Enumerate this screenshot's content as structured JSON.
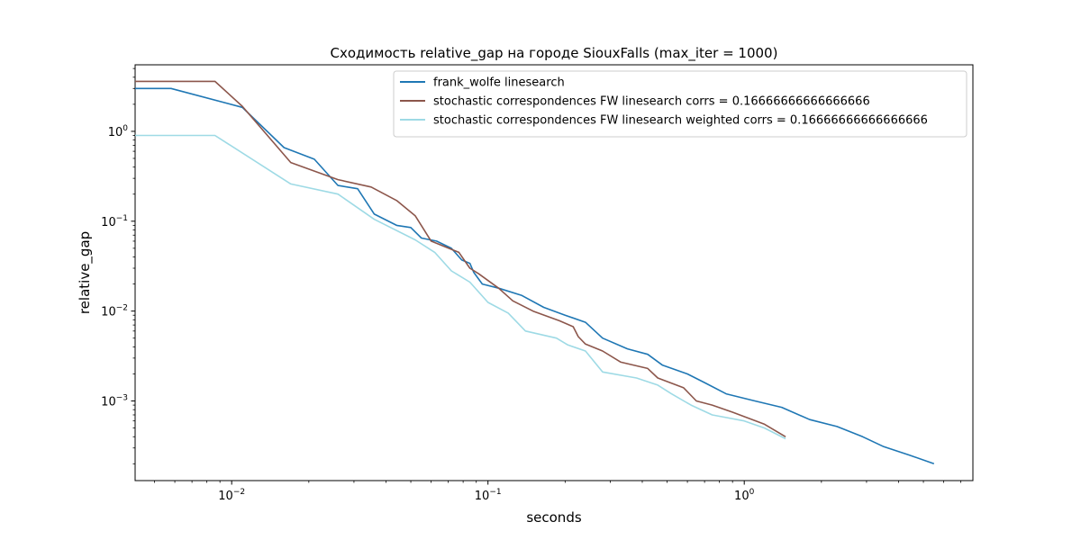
{
  "chart_data": {
    "type": "line",
    "title": "Сходимость relative_gap на городе SiouxFalls  (max_iter = 1000)",
    "xlabel": "seconds",
    "ylabel": "relative_gap",
    "xscale": "log",
    "yscale": "log",
    "xlim": [
      0.0042,
      7.8
    ],
    "ylim": [
      0.00013,
      5.5
    ],
    "grid": false,
    "legend_position": "top-right",
    "x_ticks": [
      {
        "value": 0.01,
        "base": "10",
        "exp": "−2"
      },
      {
        "value": 0.1,
        "base": "10",
        "exp": "−1"
      },
      {
        "value": 1,
        "base": "10",
        "exp": "0"
      }
    ],
    "y_ticks": [
      {
        "value": 0.001,
        "base": "10",
        "exp": "−3"
      },
      {
        "value": 0.01,
        "base": "10",
        "exp": "−2"
      },
      {
        "value": 0.1,
        "base": "10",
        "exp": "−1"
      },
      {
        "value": 1,
        "base": "10",
        "exp": "0"
      }
    ],
    "series": [
      {
        "name": "frank_wolfe linesearch",
        "color": "#1f77b4",
        "points": [
          [
            0.0042,
            3.0
          ],
          [
            0.0058,
            3.0
          ],
          [
            0.011,
            1.85
          ],
          [
            0.016,
            0.66
          ],
          [
            0.021,
            0.49
          ],
          [
            0.026,
            0.25
          ],
          [
            0.031,
            0.23
          ],
          [
            0.036,
            0.12
          ],
          [
            0.044,
            0.09
          ],
          [
            0.05,
            0.085
          ],
          [
            0.055,
            0.065
          ],
          [
            0.063,
            0.06
          ],
          [
            0.072,
            0.05
          ],
          [
            0.079,
            0.037
          ],
          [
            0.085,
            0.034
          ],
          [
            0.088,
            0.027
          ],
          [
            0.095,
            0.02
          ],
          [
            0.11,
            0.018
          ],
          [
            0.135,
            0.015
          ],
          [
            0.165,
            0.011
          ],
          [
            0.2,
            0.009
          ],
          [
            0.24,
            0.0075
          ],
          [
            0.28,
            0.005
          ],
          [
            0.35,
            0.0038
          ],
          [
            0.42,
            0.0033
          ],
          [
            0.48,
            0.0025
          ],
          [
            0.6,
            0.002
          ],
          [
            0.7,
            0.0016
          ],
          [
            0.85,
            0.0012
          ],
          [
            1.1,
            0.001
          ],
          [
            1.4,
            0.00085
          ],
          [
            1.8,
            0.00062
          ],
          [
            2.3,
            0.00052
          ],
          [
            2.9,
            0.0004
          ],
          [
            3.5,
            0.00031
          ],
          [
            4.4,
            0.00025
          ],
          [
            5.5,
            0.0002
          ]
        ]
      },
      {
        "name": "stochastic correspondences FW linesearch corrs = 0.16666666666666666",
        "color": "#8c564b",
        "points": [
          [
            0.0042,
            3.6
          ],
          [
            0.0086,
            3.6
          ],
          [
            0.011,
            1.9
          ],
          [
            0.017,
            0.45
          ],
          [
            0.026,
            0.29
          ],
          [
            0.035,
            0.24
          ],
          [
            0.044,
            0.17
          ],
          [
            0.052,
            0.115
          ],
          [
            0.06,
            0.06
          ],
          [
            0.077,
            0.045
          ],
          [
            0.085,
            0.03
          ],
          [
            0.092,
            0.026
          ],
          [
            0.11,
            0.018
          ],
          [
            0.125,
            0.013
          ],
          [
            0.15,
            0.01
          ],
          [
            0.19,
            0.0078
          ],
          [
            0.215,
            0.0067
          ],
          [
            0.225,
            0.0052
          ],
          [
            0.24,
            0.0043
          ],
          [
            0.28,
            0.0036
          ],
          [
            0.33,
            0.0027
          ],
          [
            0.42,
            0.0023
          ],
          [
            0.46,
            0.0018
          ],
          [
            0.58,
            0.0014
          ],
          [
            0.65,
            0.001
          ],
          [
            0.75,
            0.0009
          ],
          [
            0.9,
            0.00075
          ],
          [
            1.2,
            0.00055
          ],
          [
            1.45,
            0.0004
          ]
        ]
      },
      {
        "name": "stochastic correspondences FW linesearch weighted corrs = 0.16666666666666666",
        "color": "#9edae5",
        "points": [
          [
            0.0042,
            0.9
          ],
          [
            0.0086,
            0.9
          ],
          [
            0.017,
            0.26
          ],
          [
            0.026,
            0.2
          ],
          [
            0.036,
            0.105
          ],
          [
            0.052,
            0.062
          ],
          [
            0.062,
            0.045
          ],
          [
            0.072,
            0.028
          ],
          [
            0.085,
            0.021
          ],
          [
            0.1,
            0.0125
          ],
          [
            0.12,
            0.0095
          ],
          [
            0.14,
            0.006
          ],
          [
            0.185,
            0.005
          ],
          [
            0.205,
            0.0042
          ],
          [
            0.24,
            0.0036
          ],
          [
            0.28,
            0.0021
          ],
          [
            0.38,
            0.0018
          ],
          [
            0.46,
            0.0015
          ],
          [
            0.52,
            0.0012
          ],
          [
            0.62,
            0.0009
          ],
          [
            0.75,
            0.0007
          ],
          [
            1.0,
            0.0006
          ],
          [
            1.2,
            0.0005
          ],
          [
            1.45,
            0.00038
          ]
        ]
      }
    ]
  }
}
